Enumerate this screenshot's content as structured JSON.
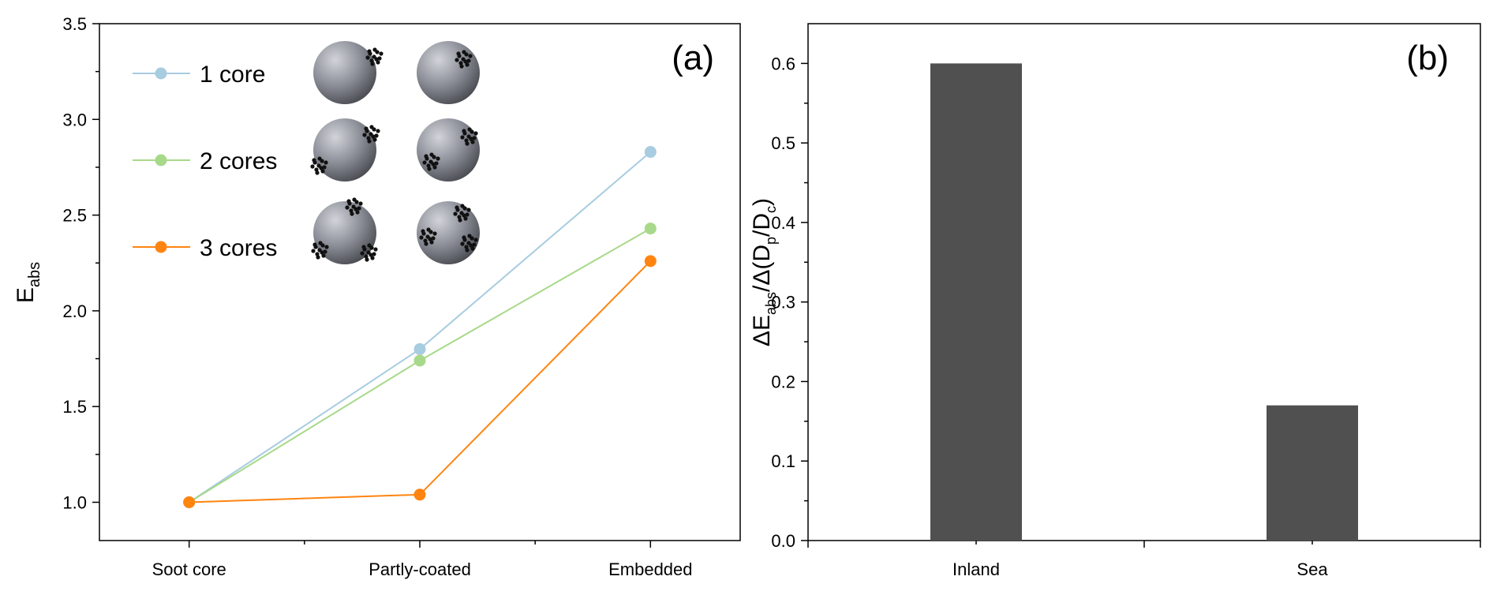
{
  "colors": {
    "1 core": "#a8cce0",
    "2 cores": "#a8d98a",
    "3 cores": "#ff8410",
    "bar": "#505050",
    "sphere": "#8a8d96"
  },
  "chart_data": [
    {
      "type": "line",
      "panel_label": "(a)",
      "ylabel": "E",
      "ylabel_sub": "abs",
      "ylim": [
        0.8,
        3.5
      ],
      "yticks": [
        "1.0",
        "1.5",
        "2.0",
        "2.5",
        "3.0",
        "3.5"
      ],
      "categories": [
        "Soot core",
        "Partly-coated",
        "Embedded"
      ],
      "legend_position": "top-left",
      "series": [
        {
          "name": "1 core",
          "values": [
            1.0,
            1.8,
            2.83
          ]
        },
        {
          "name": "2 cores",
          "values": [
            1.0,
            1.74,
            2.43
          ]
        },
        {
          "name": "3 cores",
          "values": [
            1.0,
            1.04,
            2.26
          ]
        }
      ],
      "inset_icons": [
        "coated-particle-icon",
        "soot-aggregate-icon"
      ]
    },
    {
      "type": "bar",
      "panel_label": "(b)",
      "ylabel_parts": [
        "ΔE",
        "abs",
        "/Δ(D",
        "p",
        "/D",
        "c",
        ")"
      ],
      "ylim": [
        0.0,
        0.65
      ],
      "yticks": [
        "0.0",
        "0.1",
        "0.2",
        "0.3",
        "0.4",
        "0.5",
        "0.6"
      ],
      "categories": [
        "Inland",
        "Sea"
      ],
      "values": [
        0.6,
        0.17
      ]
    }
  ]
}
